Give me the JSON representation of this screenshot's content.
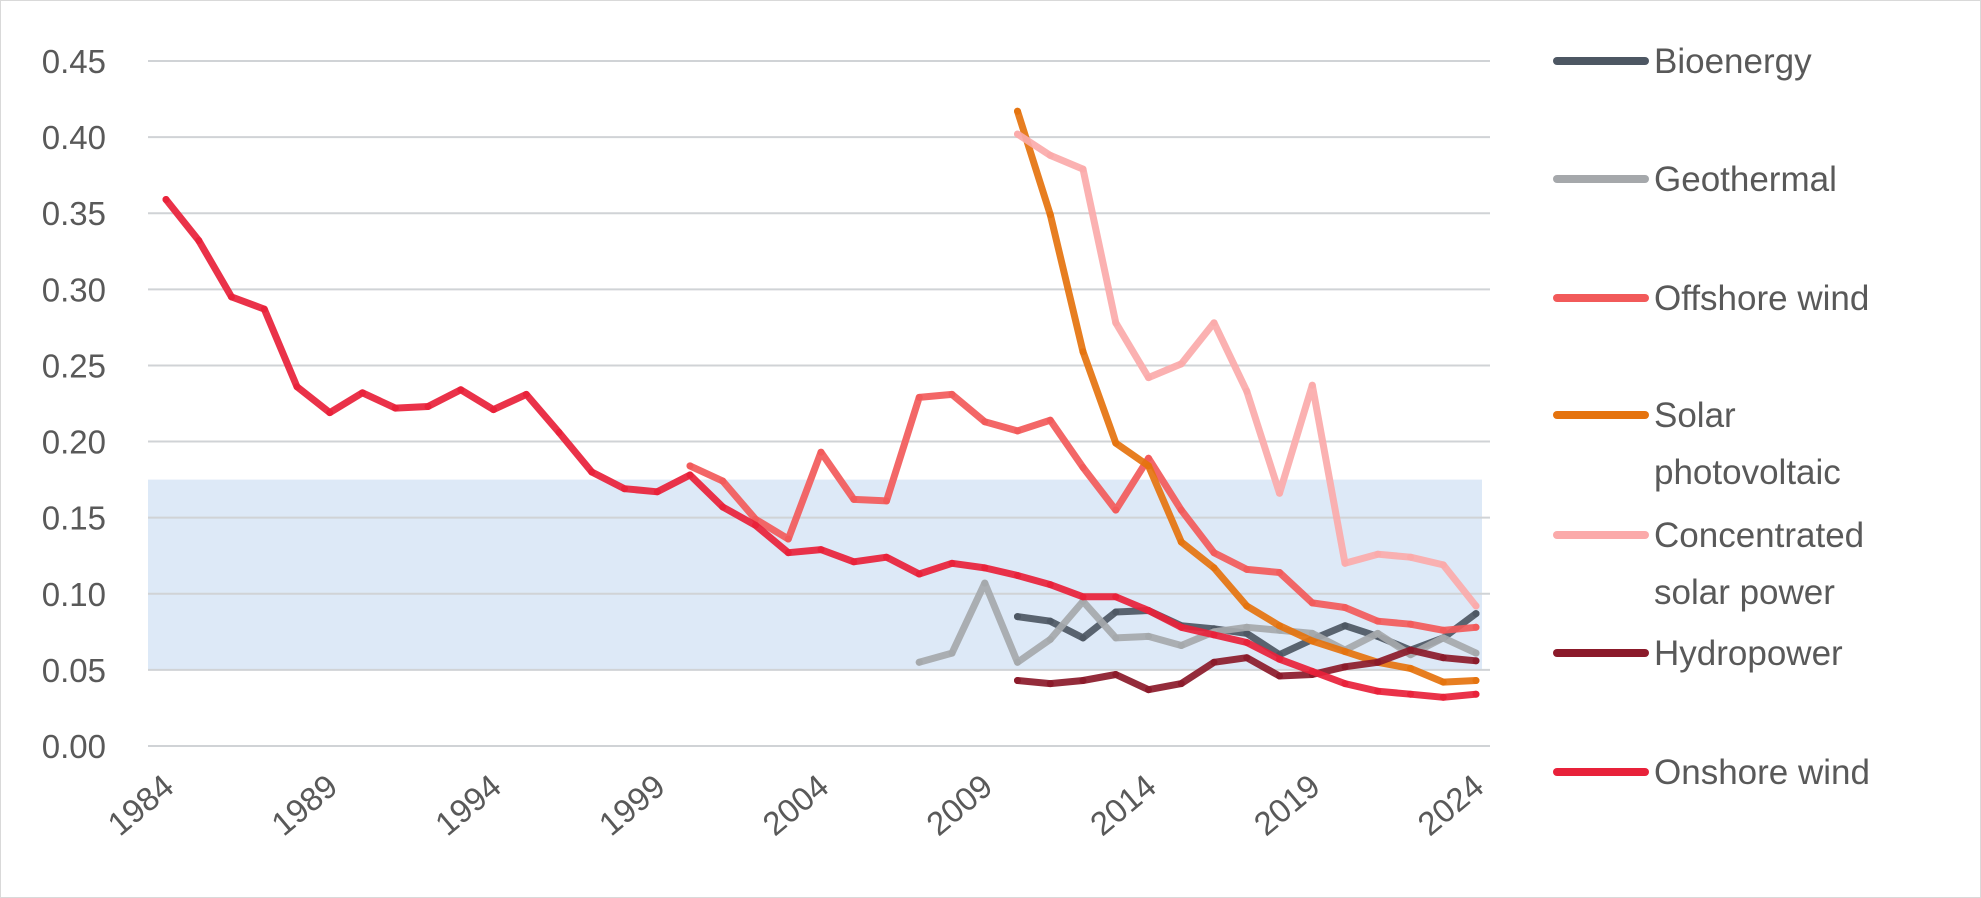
{
  "chart_data": {
    "type": "line",
    "title": "",
    "xlabel": "",
    "ylabel": "",
    "xlim": [
      1984,
      2024
    ],
    "ylim": [
      0,
      0.45
    ],
    "y_ticks": [
      "0.00",
      "0.05",
      "0.10",
      "0.15",
      "0.20",
      "0.25",
      "0.30",
      "0.35",
      "0.40",
      "0.45"
    ],
    "x_ticks": [
      "1984",
      "1989",
      "1994",
      "1999",
      "2004",
      "2009",
      "2014",
      "2019",
      "2024"
    ],
    "grid": true,
    "legend_position": "right",
    "shaded_band": {
      "y_range": [
        0.05,
        0.175
      ],
      "color": "#dde9f7"
    },
    "series": [
      {
        "name": "Bioenergy",
        "label_lines": [
          "Bioenergy"
        ],
        "color": "#4d5763",
        "x": [
          2010,
          2011,
          2012,
          2013,
          2014,
          2015,
          2016,
          2017,
          2018,
          2019,
          2020,
          2021,
          2022,
          2023,
          2024
        ],
        "values": [
          0.085,
          0.082,
          0.071,
          0.088,
          0.089,
          0.079,
          0.077,
          0.074,
          0.06,
          0.07,
          0.079,
          0.072,
          0.063,
          0.071,
          0.087
        ]
      },
      {
        "name": "Geothermal",
        "label_lines": [
          "Geothermal"
        ],
        "color": "#a5a8ab",
        "x": [
          2007,
          2008,
          2009,
          2010,
          2011,
          2012,
          2013,
          2014,
          2015,
          2016,
          2017,
          2018,
          2019,
          2020,
          2021,
          2022,
          2023,
          2024
        ],
        "values": [
          0.055,
          0.061,
          0.107,
          0.055,
          0.07,
          0.095,
          0.071,
          0.072,
          0.066,
          0.075,
          0.078,
          0.076,
          0.074,
          0.063,
          0.074,
          0.06,
          0.071,
          0.061
        ]
      },
      {
        "name": "Offshore wind",
        "label_lines": [
          "Offshore wind"
        ],
        "color": "#f25a5a",
        "x": [
          2000,
          2001,
          2002,
          2003,
          2004,
          2005,
          2006,
          2007,
          2008,
          2009,
          2010,
          2011,
          2012,
          2013,
          2014,
          2015,
          2016,
          2017,
          2018,
          2019,
          2020,
          2021,
          2022,
          2023,
          2024
        ],
        "values": [
          0.184,
          0.174,
          0.149,
          0.136,
          0.193,
          0.162,
          0.161,
          0.229,
          0.231,
          0.213,
          0.207,
          0.214,
          0.183,
          0.155,
          0.189,
          0.155,
          0.127,
          0.116,
          0.114,
          0.094,
          0.091,
          0.082,
          0.08,
          0.076,
          0.078
        ]
      },
      {
        "name": "Solar photovoltaic",
        "label_lines": [
          "Solar",
          "photovoltaic"
        ],
        "color": "#e5730e",
        "x": [
          2010,
          2011,
          2012,
          2013,
          2014,
          2015,
          2016,
          2017,
          2018,
          2019,
          2020,
          2021,
          2022,
          2023,
          2024
        ],
        "values": [
          0.417,
          0.349,
          0.259,
          0.199,
          0.184,
          0.134,
          0.117,
          0.092,
          0.079,
          0.069,
          0.062,
          0.055,
          0.051,
          0.042,
          0.043
        ]
      },
      {
        "name": "Concentrated solar power",
        "label_lines": [
          "Concentrated",
          "solar power"
        ],
        "color": "#fbaaaa",
        "x": [
          2010,
          2011,
          2012,
          2013,
          2014,
          2015,
          2016,
          2017,
          2018,
          2019,
          2020,
          2021,
          2022,
          2023,
          2024
        ],
        "values": [
          0.402,
          0.388,
          0.379,
          0.278,
          0.242,
          0.251,
          0.278,
          0.233,
          0.166,
          0.237,
          0.12,
          0.126,
          0.124,
          0.119,
          0.092
        ]
      },
      {
        "name": "Hydropower",
        "label_lines": [
          "Hydropower"
        ],
        "color": "#8b1a2a",
        "x": [
          2010,
          2011,
          2012,
          2013,
          2014,
          2015,
          2016,
          2017,
          2018,
          2019,
          2020,
          2021,
          2022,
          2023,
          2024
        ],
        "values": [
          0.043,
          0.041,
          0.043,
          0.047,
          0.037,
          0.041,
          0.055,
          0.058,
          0.046,
          0.047,
          0.052,
          0.055,
          0.063,
          0.058,
          0.056
        ]
      },
      {
        "name": "Onshore wind",
        "label_lines": [
          "Onshore wind"
        ],
        "color": "#e8213a",
        "x": [
          1984,
          1985,
          1986,
          1987,
          1988,
          1989,
          1990,
          1991,
          1992,
          1993,
          1994,
          1995,
          1996,
          1997,
          1998,
          1999,
          2000,
          2001,
          2002,
          2003,
          2004,
          2005,
          2006,
          2007,
          2008,
          2009,
          2010,
          2011,
          2012,
          2013,
          2014,
          2015,
          2016,
          2017,
          2018,
          2019,
          2020,
          2021,
          2022,
          2023,
          2024
        ],
        "values": [
          0.359,
          0.332,
          0.295,
          0.287,
          0.236,
          0.219,
          0.232,
          0.222,
          0.223,
          0.234,
          0.221,
          0.231,
          0.206,
          0.18,
          0.169,
          0.167,
          0.178,
          0.157,
          0.145,
          0.127,
          0.129,
          0.121,
          0.124,
          0.113,
          0.12,
          0.117,
          0.112,
          0.106,
          0.098,
          0.098,
          0.089,
          0.078,
          0.073,
          0.068,
          0.057,
          0.049,
          0.041,
          0.036,
          0.034,
          0.032,
          0.034
        ]
      }
    ]
  }
}
